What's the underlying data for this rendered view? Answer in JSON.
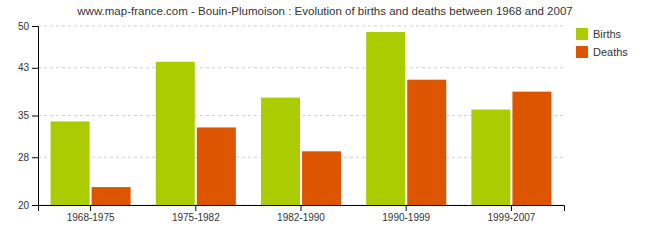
{
  "chart_data": {
    "type": "bar",
    "title": "www.map-france.com - Bouin-Plumoison : Evolution of births and deaths between 1968 and 2007",
    "categories": [
      "1968-1975",
      "1975-1982",
      "1982-1990",
      "1990-1999",
      "1999-2007"
    ],
    "series": [
      {
        "name": "Births",
        "color": "#aacc00",
        "values": [
          34,
          44,
          38,
          49,
          36
        ]
      },
      {
        "name": "Deaths",
        "color": "#dd5500",
        "values": [
          23,
          33,
          29,
          41,
          39
        ]
      }
    ],
    "ylim": [
      20,
      50
    ],
    "yticks": [
      20,
      28,
      35,
      43,
      50
    ],
    "grid": true,
    "legend": "upper right"
  }
}
